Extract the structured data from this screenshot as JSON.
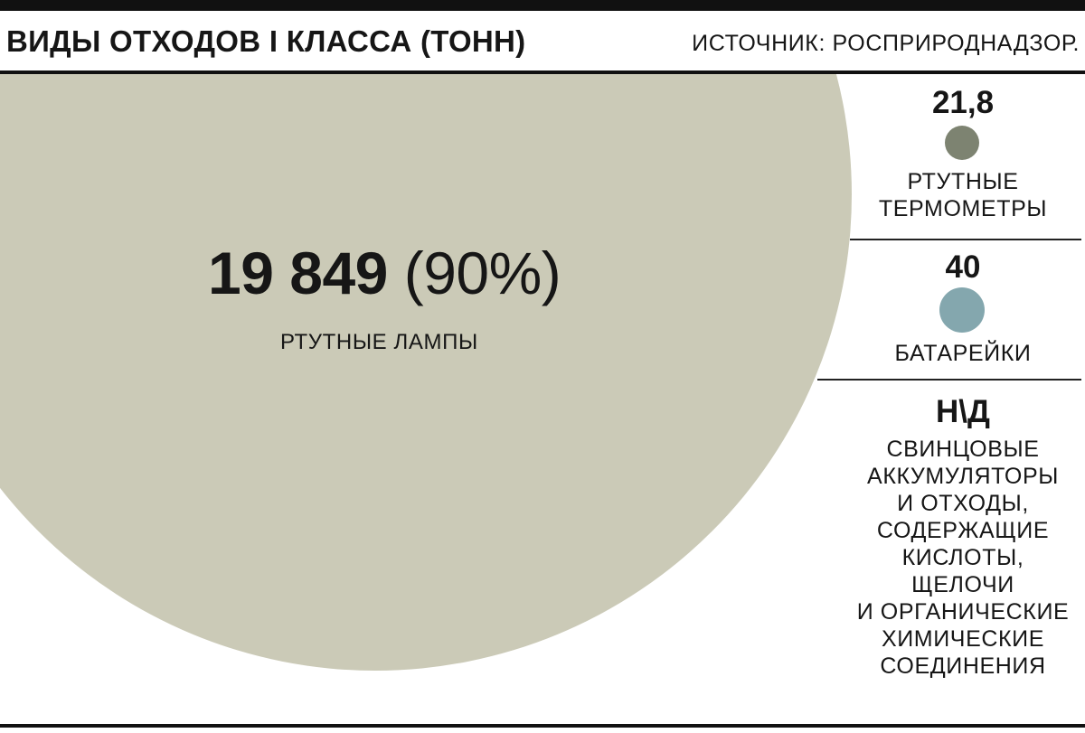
{
  "header": {
    "title": "ВИДЫ ОТХОДОВ I КЛАССА (ТОНН)",
    "source": "ИСТОЧНИК: РОСПРИРОДНАДЗОР."
  },
  "colors": {
    "lamps": "#cbcab7",
    "thermometers": "#7d8371",
    "batteries": "#84a7ae",
    "rule": "#111111"
  },
  "chart_data": {
    "type": "bubble",
    "title": "ВИДЫ ОТХОДОВ I КЛАССА (ТОНН)",
    "unit": "тонн",
    "items": [
      {
        "key": "lamps",
        "value": 19849,
        "value_label": "19 849",
        "share_label": "(90%)",
        "label": "РТУТНЫЕ ЛАМПЫ",
        "color": "#cbcab7"
      },
      {
        "key": "thermometers",
        "value": 21.8,
        "value_label": "21,8",
        "label_lines": [
          "РТУТНЫЕ",
          "ТЕРМОМЕТРЫ"
        ],
        "color": "#7d8371"
      },
      {
        "key": "batteries",
        "value": 40,
        "value_label": "40",
        "label_lines": [
          "БАТАРЕЙКИ"
        ],
        "color": "#84a7ae"
      },
      {
        "key": "lead_acid",
        "value": null,
        "value_label": "Н\\Д",
        "label_lines": [
          "СВИНЦОВЫЕ",
          "АККУМУЛЯТОРЫ",
          "И ОТХОДЫ,",
          "СОДЕРЖАЩИЕ",
          "КИСЛОТЫ,",
          "ЩЕЛОЧИ",
          "И ОРГАНИЧЕСКИЕ",
          "ХИМИЧЕСКИЕ",
          "СОЕДИНЕНИЯ"
        ]
      }
    ]
  }
}
